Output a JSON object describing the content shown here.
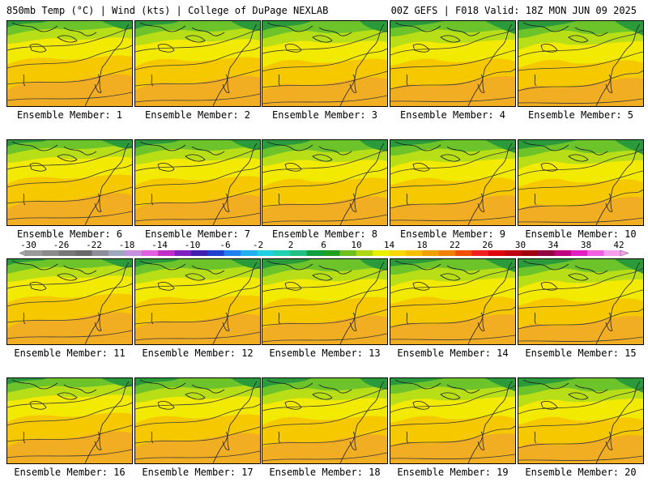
{
  "header": {
    "left": "850mb Temp (°C) | Wind (kts) | College of DuPage NEXLAB",
    "right": "00Z GEFS | F018 Valid: 18Z MON JUN 09 2025"
  },
  "members": [
    "Ensemble Member: 1",
    "Ensemble Member: 2",
    "Ensemble Member: 3",
    "Ensemble Member: 4",
    "Ensemble Member: 5",
    "Ensemble Member: 6",
    "Ensemble Member: 7",
    "Ensemble Member: 8",
    "Ensemble Member: 9",
    "Ensemble Member: 10",
    "Ensemble Member: 11",
    "Ensemble Member: 12",
    "Ensemble Member: 13",
    "Ensemble Member: 14",
    "Ensemble Member: 15",
    "Ensemble Member: 16",
    "Ensemble Member: 17",
    "Ensemble Member: 18",
    "Ensemble Member: 19",
    "Ensemble Member: 20"
  ],
  "colorbar": {
    "labels": [
      "-30",
      "-26",
      "-22",
      "-18",
      "-14",
      "-10",
      "-6",
      "-2",
      "2",
      "6",
      "10",
      "14",
      "18",
      "22",
      "26",
      "30",
      "34",
      "38",
      "42"
    ],
    "colors": [
      "#9a9a9a",
      "#8a8a8a",
      "#777777",
      "#6a6a6a",
      "#8e8e9a",
      "#a0a8c0",
      "#c890e0",
      "#e060e0",
      "#c030c8",
      "#8020c0",
      "#4020b0",
      "#2040d0",
      "#2080f0",
      "#20b0f0",
      "#20d0e0",
      "#20d0b0",
      "#20c080",
      "#10a040",
      "#20a020",
      "#70c020",
      "#b0d810",
      "#e8f000",
      "#f8d800",
      "#f8c000",
      "#f0a000",
      "#f08000",
      "#f05000",
      "#f02020",
      "#e00010",
      "#c00010",
      "#a00010",
      "#900040",
      "#c00080",
      "#e020c0",
      "#f060e0",
      "#f8a0f0"
    ]
  },
  "colors": {
    "green_dark": "#2a9a3a",
    "green": "#6cc42a",
    "yellow_green": "#b8de18",
    "yellow": "#f2ea00",
    "gold": "#f6c800",
    "orange": "#f2ae22"
  }
}
